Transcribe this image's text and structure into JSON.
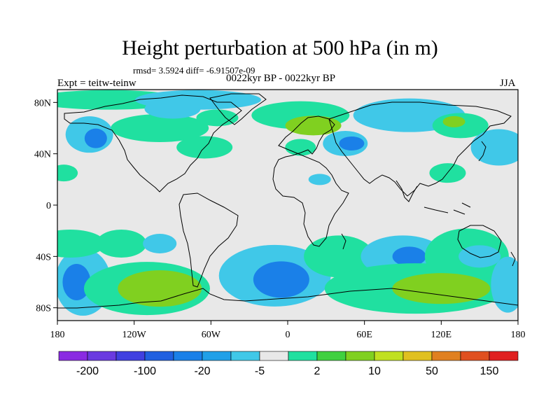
{
  "map": {
    "title": "Height perturbation at 500 hPa (in m)",
    "stats": "rmsd= 3.5924 diff= -6.91507e-09",
    "period": "0022kyr BP - 0022kyr BP",
    "experiment": "Expt = teitw-teinw",
    "season": "JJA",
    "lon_range": [
      -180,
      180
    ],
    "lat_range": [
      -90,
      90
    ],
    "lon_ticks": [
      {
        "value": -180,
        "label": "180"
      },
      {
        "value": -120,
        "label": "120W"
      },
      {
        "value": -60,
        "label": "60W"
      },
      {
        "value": 0,
        "label": "0"
      },
      {
        "value": 60,
        "label": "60E"
      },
      {
        "value": 120,
        "label": "120E"
      },
      {
        "value": 180,
        "label": "180"
      }
    ],
    "lat_ticks": [
      {
        "value": 80,
        "label": "80N"
      },
      {
        "value": 40,
        "label": "40N"
      },
      {
        "value": 0,
        "label": "0"
      },
      {
        "value": -40,
        "label": "40S"
      },
      {
        "value": -80,
        "label": "80S"
      }
    ],
    "background_color": "#e8e8e8"
  },
  "colorbar": {
    "colors": [
      "#8a2be2",
      "#6a3ae0",
      "#4040e0",
      "#2060e0",
      "#1a80e8",
      "#20a0e8",
      "#40c8e8",
      "#e8e8e8",
      "#20e0a0",
      "#40d040",
      "#80d020",
      "#c0e020",
      "#e0c020",
      "#e08020",
      "#e05020",
      "#e02020"
    ],
    "labels": [
      "-200",
      "-100",
      "-20",
      "-5",
      "2",
      "10",
      "50",
      "150"
    ]
  },
  "fields": [
    {
      "lon": -155,
      "lat": 55,
      "value": -5
    },
    {
      "lon": -150,
      "lat": 52,
      "value": -20
    },
    {
      "lon": -140,
      "lat": 82,
      "value": 2
    },
    {
      "lon": -70,
      "lat": 82,
      "value": -5
    },
    {
      "lon": -100,
      "lat": 60,
      "value": 2
    },
    {
      "lon": -65,
      "lat": 45,
      "value": 2
    },
    {
      "lon": -90,
      "lat": 75,
      "value": -5
    },
    {
      "lon": -55,
      "lat": 68,
      "value": 2
    },
    {
      "lon": -175,
      "lat": 25,
      "value": 2
    },
    {
      "lon": 10,
      "lat": 70,
      "value": 2
    },
    {
      "lon": 20,
      "lat": 62,
      "value": 10
    },
    {
      "lon": 45,
      "lat": 48,
      "value": -5
    },
    {
      "lon": 50,
      "lat": 48,
      "value": -20
    },
    {
      "lon": 10,
      "lat": 45,
      "value": 2
    },
    {
      "lon": 25,
      "lat": 20,
      "value": -5
    },
    {
      "lon": 95,
      "lat": 70,
      "value": -5
    },
    {
      "lon": 135,
      "lat": 62,
      "value": 2
    },
    {
      "lon": 130,
      "lat": 65,
      "value": 10
    },
    {
      "lon": 165,
      "lat": 45,
      "value": -5
    },
    {
      "lon": 125,
      "lat": 25,
      "value": 2
    },
    {
      "lon": -160,
      "lat": -60,
      "value": -5
    },
    {
      "lon": -165,
      "lat": -60,
      "value": -20
    },
    {
      "lon": -170,
      "lat": -30,
      "value": 2
    },
    {
      "lon": -110,
      "lat": -65,
      "value": 2
    },
    {
      "lon": -100,
      "lat": -65,
      "value": 10
    },
    {
      "lon": -130,
      "lat": -30,
      "value": 2
    },
    {
      "lon": -100,
      "lat": -30,
      "value": -5
    },
    {
      "lon": -10,
      "lat": -55,
      "value": -5
    },
    {
      "lon": -5,
      "lat": -58,
      "value": -20
    },
    {
      "lon": 40,
      "lat": -40,
      "value": 2
    },
    {
      "lon": 90,
      "lat": -40,
      "value": -5
    },
    {
      "lon": 95,
      "lat": -40,
      "value": -20
    },
    {
      "lon": 140,
      "lat": -40,
      "value": 2
    },
    {
      "lon": 150,
      "lat": -40,
      "value": -5
    },
    {
      "lon": 100,
      "lat": -65,
      "value": 2
    },
    {
      "lon": 120,
      "lat": -65,
      "value": 10
    },
    {
      "lon": 172,
      "lat": -62,
      "value": -5
    }
  ]
}
